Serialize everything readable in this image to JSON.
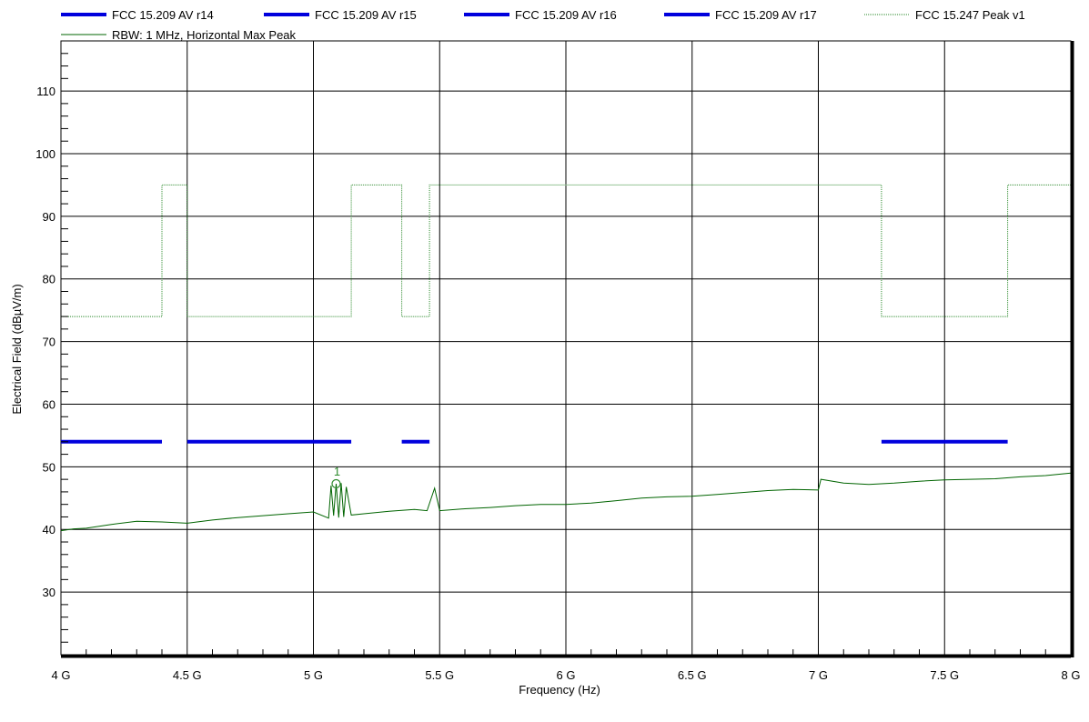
{
  "chart_data": {
    "type": "line",
    "title": "",
    "xlabel": "Frequency (Hz)",
    "ylabel": "Electrical Field (dBµV/m)",
    "xlim": [
      4000000000,
      8000000000
    ],
    "ylim": [
      20,
      118
    ],
    "x_log": false,
    "grid": true,
    "legend_position": "top",
    "x_ticks": [
      {
        "value": 4000000000,
        "label": "4 G"
      },
      {
        "value": 4500000000,
        "label": "4.5 G"
      },
      {
        "value": 5000000000,
        "label": "5 G"
      },
      {
        "value": 5500000000,
        "label": "5.5 G"
      },
      {
        "value": 6000000000,
        "label": "6 G"
      },
      {
        "value": 6500000000,
        "label": "6.5 G"
      },
      {
        "value": 7000000000,
        "label": "7 G"
      },
      {
        "value": 7500000000,
        "label": "7.5 G"
      },
      {
        "value": 8000000000,
        "label": "8 G"
      }
    ],
    "y_ticks": [
      30,
      40,
      50,
      60,
      70,
      80,
      90,
      100,
      110
    ],
    "series": [
      {
        "name": "FCC 15.209 AV r14",
        "color": "#0000dd",
        "style": "thick",
        "x": [
          4000000000,
          4400000000
        ],
        "y": [
          54,
          54
        ]
      },
      {
        "name": "FCC 15.209 AV r15",
        "color": "#0000dd",
        "style": "thick",
        "x": [
          4500000000,
          5150000000
        ],
        "y": [
          54,
          54
        ]
      },
      {
        "name": "FCC 15.209 AV r16",
        "color": "#0000dd",
        "style": "thick",
        "x": [
          5350000000,
          5460000000
        ],
        "y": [
          54,
          54
        ]
      },
      {
        "name": "FCC 15.209 AV r17",
        "color": "#0000dd",
        "style": "thick",
        "x": [
          7250000000,
          7750000000
        ],
        "y": [
          54,
          54
        ]
      },
      {
        "name": "FCC 15.247 Peak v1",
        "color": "#2e8b2e",
        "style": "dotted",
        "x": [
          4000000000,
          4400000000,
          4400000000,
          4500000000,
          4500000000,
          5150000000,
          5150000000,
          5350000000,
          5350000000,
          5460000000,
          5460000000,
          7250000000,
          7250000000,
          7750000000,
          7750000000,
          8000000000
        ],
        "y": [
          74,
          74,
          95,
          95,
          74,
          74,
          95,
          95,
          74,
          74,
          95,
          95,
          74,
          74,
          95,
          95
        ]
      },
      {
        "name": "RBW: 1 MHz, Horizontal Max Peak",
        "color": "#006400",
        "style": "thin",
        "x": [
          4000000000,
          4050000000,
          4100000000,
          4200000000,
          4300000000,
          4400000000,
          4500000000,
          4600000000,
          4700000000,
          4800000000,
          4900000000,
          5000000000,
          5060000000,
          5070000000,
          5080000000,
          5090000000,
          5100000000,
          5110000000,
          5120000000,
          5130000000,
          5150000000,
          5200000000,
          5300000000,
          5400000000,
          5450000000,
          5480000000,
          5500000000,
          5600000000,
          5700000000,
          5800000000,
          5900000000,
          6000000000,
          6100000000,
          6200000000,
          6300000000,
          6400000000,
          6500000000,
          6600000000,
          6700000000,
          6800000000,
          6900000000,
          7000000000,
          7010000000,
          7100000000,
          7200000000,
          7300000000,
          7400000000,
          7500000000,
          7600000000,
          7700000000,
          7800000000,
          7900000000,
          8000000000
        ],
        "y": [
          39.8,
          40.1,
          40.2,
          40.8,
          41.3,
          41.2,
          41.0,
          41.5,
          41.9,
          42.2,
          42.5,
          42.8,
          41.8,
          47.0,
          42.2,
          47.3,
          41.9,
          47.4,
          42.0,
          46.8,
          42.3,
          42.5,
          42.9,
          43.2,
          43.0,
          46.6,
          43.0,
          43.3,
          43.5,
          43.8,
          44.0,
          44.0,
          44.2,
          44.6,
          45.0,
          45.2,
          45.3,
          45.6,
          45.9,
          46.2,
          46.4,
          46.3,
          48.0,
          47.4,
          47.2,
          47.4,
          47.7,
          47.9,
          48.0,
          48.1,
          48.4,
          48.6,
          49.0
        ]
      }
    ],
    "markers": [
      {
        "label": "1",
        "x": 5090000000,
        "y": 47.3
      }
    ]
  }
}
